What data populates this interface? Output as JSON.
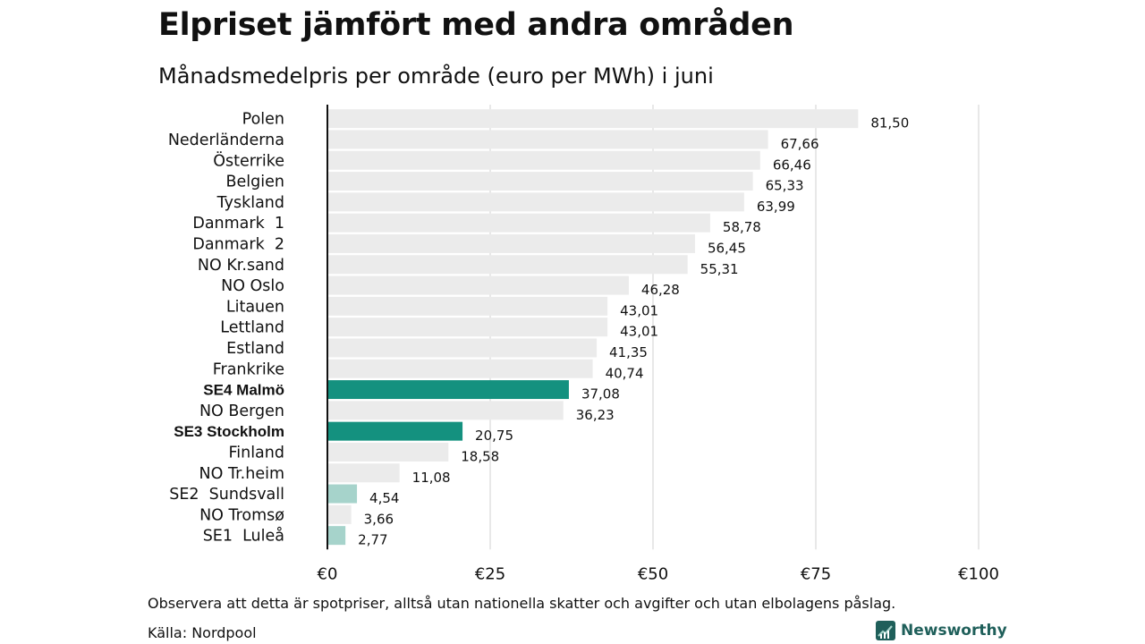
{
  "header": {
    "title": "Elpriset jämfört med andra områden",
    "subtitle": "Månadsmedelpris per område (euro per MWh) i juni"
  },
  "footer": {
    "note": "Observera att detta är spotpriser, alltså utan nationella skatter och avgifter och utan elbolagens påslag.",
    "source": "Källa: Nordpool",
    "brand": "Newsworthy"
  },
  "colors": {
    "default": "#ebebeb",
    "highlight": "#14917f",
    "light_highlight": "#a6d3cb",
    "brand": "#1f5f5a"
  },
  "chart_data": {
    "type": "bar",
    "orientation": "horizontal",
    "categories": [
      "Polen",
      "Nederländerna",
      "Österrike",
      "Belgien",
      "Tyskland",
      "Danmark  1",
      "Danmark  2",
      "NO Kr.sand",
      "NO Oslo",
      "Litauen",
      "Lettland",
      "Estland",
      "Frankrike",
      "SE4 Malmö",
      "NO Bergen",
      "SE3 Stockholm",
      "Finland",
      "NO Tr.heim",
      "SE2  Sundsvall",
      "NO Tromsø",
      "SE1  Luleå"
    ],
    "values": [
      81.5,
      67.66,
      66.46,
      65.33,
      63.99,
      58.78,
      56.45,
      55.31,
      46.28,
      43.01,
      43.01,
      41.35,
      40.74,
      37.08,
      36.23,
      20.75,
      18.58,
      11.08,
      4.54,
      3.66,
      2.77
    ],
    "value_labels": [
      "81,50",
      "67,66",
      "66,46",
      "65,33",
      "63,99",
      "58,78",
      "56,45",
      "55,31",
      "46,28",
      "43,01",
      "43,01",
      "41,35",
      "40,74",
      "37,08",
      "36,23",
      "20,75",
      "18,58",
      "11,08",
      "4,54",
      "3,66",
      "2,77"
    ],
    "bar_style": [
      "default",
      "default",
      "default",
      "default",
      "default",
      "default",
      "default",
      "default",
      "default",
      "default",
      "default",
      "default",
      "default",
      "highlight",
      "default",
      "highlight",
      "default",
      "default",
      "light_highlight",
      "default",
      "light_highlight"
    ],
    "bold_categories": [
      "SE4 Malmö",
      "SE3 Stockholm"
    ],
    "xlim": [
      0,
      100
    ],
    "xticks": [
      0,
      25,
      50,
      75,
      100
    ],
    "xtick_labels": [
      "€0",
      "€25",
      "€50",
      "€75",
      "€100"
    ],
    "grid": "vertical",
    "xlabel": "",
    "ylabel": ""
  }
}
